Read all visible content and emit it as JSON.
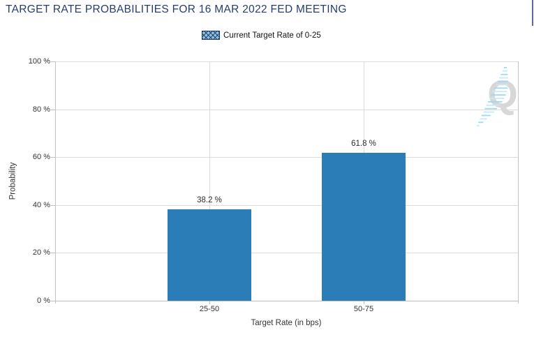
{
  "header": {
    "title": "TARGET RATE PROBABILITIES FOR 16 MAR 2022 FED MEETING"
  },
  "legend": {
    "label": "Current Target Rate of 0-25"
  },
  "watermark": {
    "letter": "Q"
  },
  "chart_data": {
    "type": "bar",
    "title": "TARGET RATE PROBABILITIES FOR 16 MAR 2022 FED MEETING",
    "categories": [
      "25-50",
      "50-75"
    ],
    "values": [
      38.2,
      61.8
    ],
    "value_labels": [
      "38.2 %",
      "61.8 %"
    ],
    "series": [
      {
        "name": "Current Target Rate of 0-25",
        "values": [
          38.2,
          61.8
        ]
      }
    ],
    "xlabel": "Target Rate (in bps)",
    "ylabel": "Probability",
    "ylim": [
      0,
      100
    ],
    "yticks": [
      0,
      20,
      40,
      60,
      80,
      100
    ],
    "ytick_labels": [
      "0 %",
      "20 %",
      "40 %",
      "60 %",
      "80 %",
      "100 %"
    ],
    "grid": true,
    "legend_position": "top",
    "bar_color": "#2b7db8"
  }
}
